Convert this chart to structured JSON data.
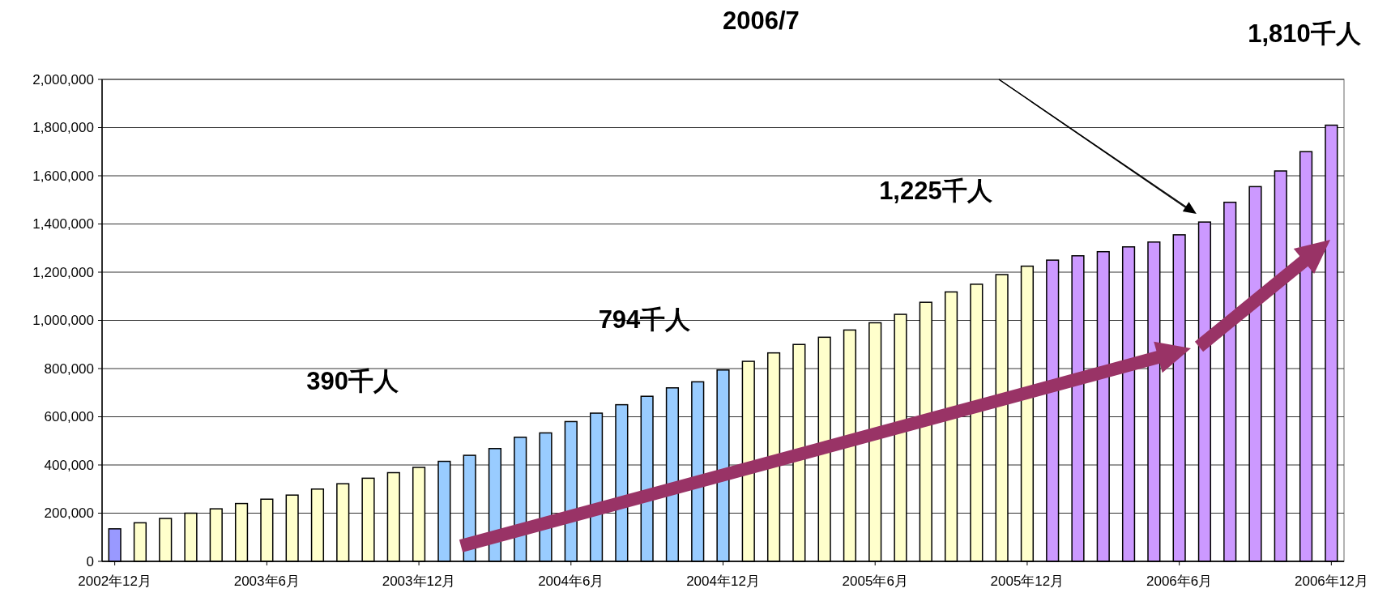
{
  "chart_data": {
    "type": "bar",
    "categories": [
      "2002年12月",
      null,
      null,
      null,
      null,
      null,
      "2003年6月",
      null,
      null,
      null,
      null,
      null,
      "2003年12月",
      null,
      null,
      null,
      null,
      null,
      "2004年6月",
      null,
      null,
      null,
      null,
      null,
      "2004年12月",
      null,
      null,
      null,
      null,
      null,
      "2005年6月",
      null,
      null,
      null,
      null,
      null,
      "2005年12月",
      null,
      null,
      null,
      null,
      null,
      "2006年6月",
      null,
      null,
      null,
      null,
      null,
      "2006年12月"
    ],
    "values": [
      135000,
      160000,
      178000,
      200000,
      218000,
      240000,
      258000,
      275000,
      300000,
      322000,
      345000,
      368000,
      390000,
      415000,
      440000,
      468000,
      515000,
      533000,
      580000,
      615000,
      650000,
      685000,
      720000,
      745000,
      794000,
      830000,
      865000,
      900000,
      930000,
      960000,
      990000,
      1025000,
      1075000,
      1118000,
      1150000,
      1190000,
      1225000,
      1250000,
      1268000,
      1285000,
      1305000,
      1325000,
      1355000,
      1408000,
      1490000,
      1555000,
      1620000,
      1700000,
      1810000
    ],
    "colors": [
      "#9999ff",
      "#ffffcc",
      "#ffffcc",
      "#ffffcc",
      "#ffffcc",
      "#ffffcc",
      "#ffffcc",
      "#ffffcc",
      "#ffffcc",
      "#ffffcc",
      "#ffffcc",
      "#ffffcc",
      "#ffffcc",
      "#99ccff",
      "#99ccff",
      "#99ccff",
      "#99ccff",
      "#99ccff",
      "#99ccff",
      "#99ccff",
      "#99ccff",
      "#99ccff",
      "#99ccff",
      "#99ccff",
      "#99ccff",
      "#ffffcc",
      "#ffffcc",
      "#ffffcc",
      "#ffffcc",
      "#ffffcc",
      "#ffffcc",
      "#ffffcc",
      "#ffffcc",
      "#ffffcc",
      "#ffffcc",
      "#ffffcc",
      "#ffffcc",
      "#cc99ff",
      "#cc99ff",
      "#cc99ff",
      "#cc99ff",
      "#cc99ff",
      "#cc99ff",
      "#cc99ff",
      "#cc99ff",
      "#cc99ff",
      "#cc99ff",
      "#cc99ff",
      "#cc99ff"
    ],
    "ylim": [
      0,
      2000000
    ],
    "yticks": [
      {
        "value": 0,
        "label": "0"
      },
      {
        "value": 200000,
        "label": "200,000"
      },
      {
        "value": 400000,
        "label": "400,000"
      },
      {
        "value": 600000,
        "label": "600,000"
      },
      {
        "value": 800000,
        "label": "800,000"
      },
      {
        "value": 1000000,
        "label": "1,000,000"
      },
      {
        "value": 1200000,
        "label": "1,200,000"
      },
      {
        "value": 1400000,
        "label": "1,400,000"
      },
      {
        "value": 1600000,
        "label": "1,600,000"
      },
      {
        "value": 1800000,
        "label": "1,800,000"
      },
      {
        "value": 2000000,
        "label": "2,000,000"
      }
    ],
    "grid": "y",
    "annotations": [
      {
        "text": "390千人",
        "x": "2003年12月",
        "y": 390000
      },
      {
        "text": "794千人",
        "x": "2004年12月",
        "y": 794000
      },
      {
        "text": "1,225千人",
        "x": "2005年12月",
        "y": 1225000
      },
      "1,810千人",
      "2006/7"
    ]
  }
}
